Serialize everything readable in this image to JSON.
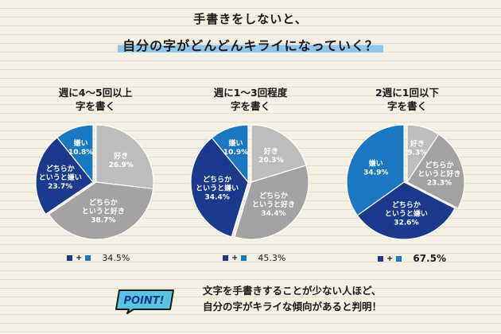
{
  "header": {
    "title_line1": "手書きをしないと、",
    "title_line2": "自分の字がどんどんキライになっていく？"
  },
  "colors": {
    "dark_blue": "#1b3a8c",
    "mid_blue": "#1a78c2",
    "light_gray": "#bdbdbd",
    "dark_gray": "#a3a3a3",
    "highlight": "#8fc6ea"
  },
  "chart_data": [
    {
      "type": "pie",
      "title": "週に4～5回以上",
      "subtitle": "字を書く",
      "slices": [
        {
          "label": "好き",
          "value": 26.9,
          "color": "#bdbdbd",
          "value_label": "26.9%"
        },
        {
          "label": "どちらかというと好き",
          "value": 38.7,
          "color": "#a3a3a3",
          "value_label": "38.7%"
        },
        {
          "label": "どちらかというと嫌い",
          "value": 23.7,
          "color": "#1b3a8c",
          "value_label": "23.7%"
        },
        {
          "label": "嫌い",
          "value": 10.8,
          "color": "#1a78c2",
          "value_label": "10.8%"
        }
      ],
      "dislike_total": "34.5%"
    },
    {
      "type": "pie",
      "title": "週に1～3回程度",
      "subtitle": "字を書く",
      "slices": [
        {
          "label": "好き",
          "value": 20.3,
          "color": "#bdbdbd",
          "value_label": "20.3%"
        },
        {
          "label": "どちらかというと好き",
          "value": 34.4,
          "color": "#a3a3a3",
          "value_label": "34.4%"
        },
        {
          "label": "どちらかというと嫌い",
          "value": 34.4,
          "color": "#1b3a8c",
          "value_label": "34.4%"
        },
        {
          "label": "嫌い",
          "value": 10.9,
          "color": "#1a78c2",
          "value_label": "10.9%"
        }
      ],
      "dislike_total": "45.3%"
    },
    {
      "type": "pie",
      "title": "2週に1回以下",
      "subtitle": "字を書く",
      "slices": [
        {
          "label": "好き",
          "value": 9.3,
          "color": "#bdbdbd",
          "value_label": "9.3%"
        },
        {
          "label": "どちらかというと好き",
          "value": 23.3,
          "color": "#a3a3a3",
          "value_label": "23.3%"
        },
        {
          "label": "どちらかというと嫌い",
          "value": 32.6,
          "color": "#1b3a8c",
          "value_label": "32.6%"
        },
        {
          "label": "嫌い",
          "value": 34.9,
          "color": "#1a78c2",
          "value_label": "34.9%"
        }
      ],
      "dislike_total": "67.5%"
    }
  ],
  "legend_plus": "+",
  "point": {
    "badge": "POINT!",
    "line1": "文字を手書きすることが少ない人ほど、",
    "line2": "自分の字がキライな傾向があると判明！"
  }
}
